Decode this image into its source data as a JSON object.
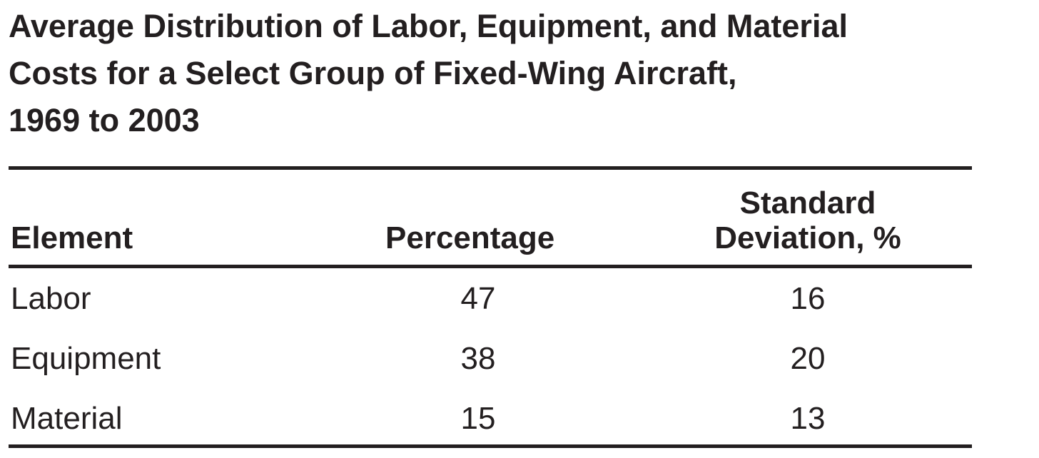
{
  "title_lines": [
    "Average Distribution of Labor, Equipment, and Material",
    "Costs for a Select Group of Fixed-Wing Aircraft,",
    "1969 to 2003"
  ],
  "table": {
    "headers": [
      "Element",
      "Percentage",
      "Standard Deviation, %"
    ],
    "rows": [
      [
        "Labor",
        47,
        16
      ],
      [
        "Equipment",
        38,
        20
      ],
      [
        "Material",
        15,
        13
      ]
    ]
  }
}
